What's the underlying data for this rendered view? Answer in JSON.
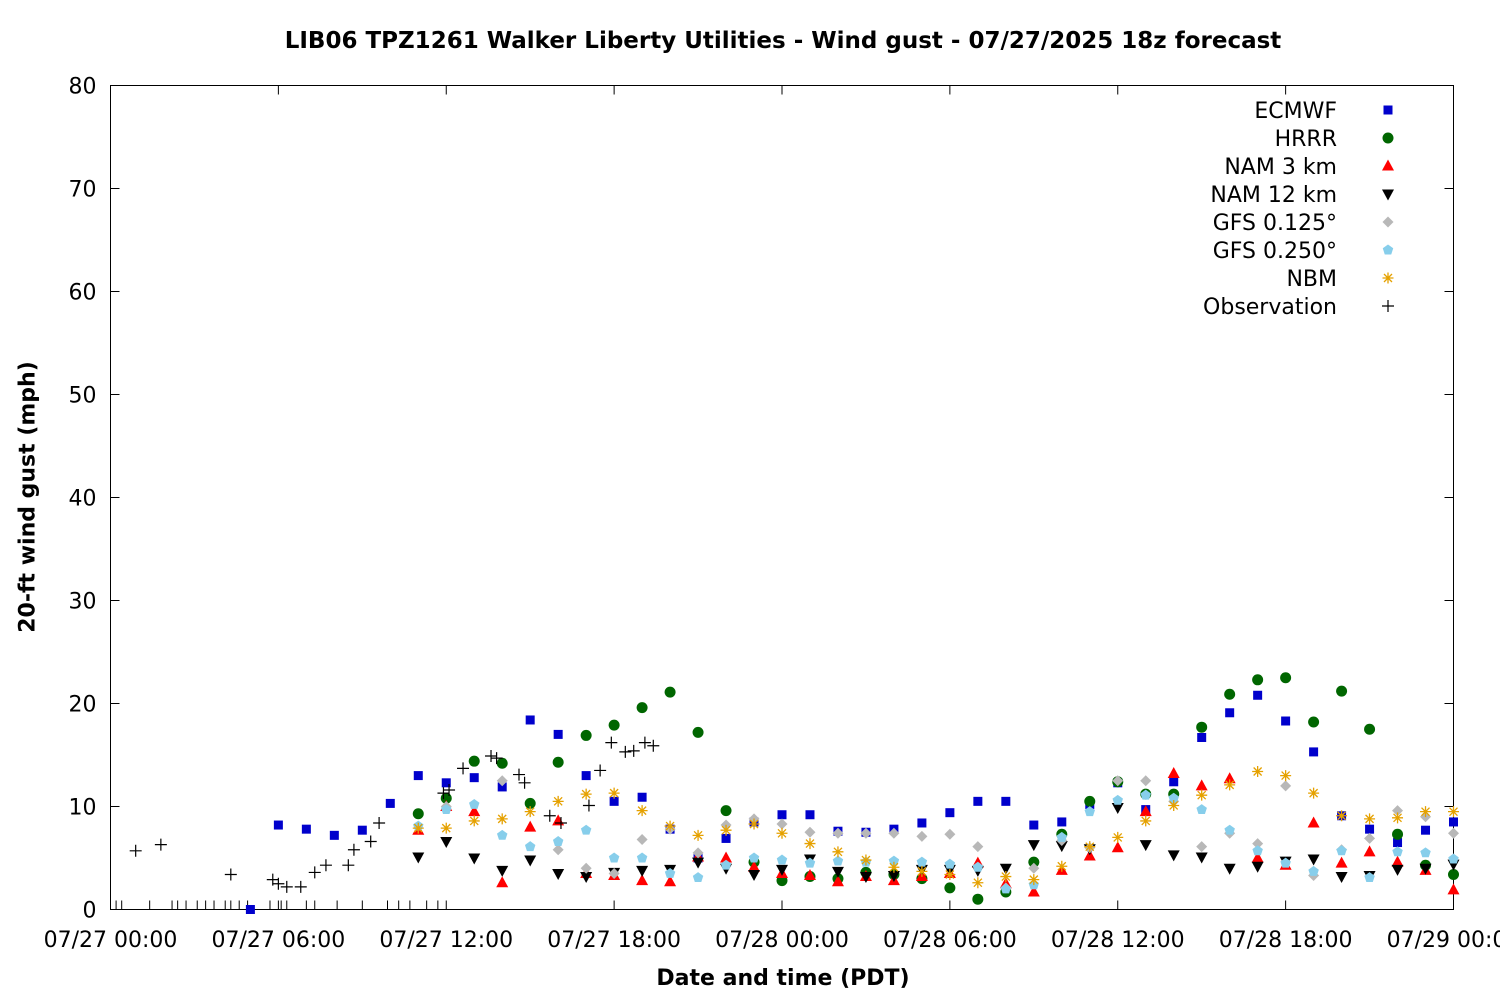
{
  "chart_data": {
    "type": "scatter",
    "title": "LIB06 TPZ1261 Walker Liberty Utilities - Wind gust - 07/27/2025 18z forecast",
    "xlabel": "Date and time (PDT)",
    "ylabel": "20-ft wind gust (mph)",
    "x_range_hours": [
      0,
      48
    ],
    "ylim": [
      0,
      80
    ],
    "y_ticks": [
      0,
      10,
      20,
      30,
      40,
      50,
      60,
      70,
      80
    ],
    "x_ticks": [
      {
        "hour": 0,
        "label": "07/27 00:00"
      },
      {
        "hour": 6,
        "label": "07/27 06:00"
      },
      {
        "hour": 12,
        "label": "07/27 12:00"
      },
      {
        "hour": 18,
        "label": "07/27 18:00"
      },
      {
        "hour": 24,
        "label": "07/28 00:00"
      },
      {
        "hour": 30,
        "label": "07/28 06:00"
      },
      {
        "hour": 36,
        "label": "07/28 12:00"
      },
      {
        "hour": 42,
        "label": "07/28 18:00"
      },
      {
        "hour": 48,
        "label": "07/29 00:00"
      }
    ],
    "x_unit": "hours since 07/27 00:00 PDT",
    "grid": false,
    "legend_position": "top-right",
    "observation_times_hours": [
      0.0,
      0.2,
      0.4,
      1.4,
      2.2,
      2.4,
      2.7,
      3.1,
      3.4,
      3.7,
      4.1,
      4.3,
      4.6,
      4.9,
      5.7,
      6.1,
      6.3,
      7.0,
      7.3,
      8.1,
      9.0,
      9.9,
      10.3,
      10.7,
      11.3,
      11.7
    ],
    "series": [
      {
        "name": "ECMWF",
        "marker": "square",
        "color": "#0000cc",
        "x": [
          5,
          6,
          7,
          8,
          9,
          10,
          11,
          12,
          13,
          14,
          15,
          16,
          17,
          18,
          19,
          20,
          21,
          22,
          23,
          24,
          25,
          26,
          27,
          28,
          29,
          30,
          31,
          32,
          33,
          34,
          35,
          36,
          37,
          38,
          39,
          40,
          41,
          42,
          43,
          44,
          45,
          46,
          47,
          48
        ],
        "y": [
          0,
          8.2,
          7.8,
          7.2,
          7.7,
          10.3,
          13,
          12.3,
          12.8,
          11.9,
          18.4,
          17,
          13,
          10.5,
          10.9,
          7.8,
          5,
          6.9,
          8.5,
          9.2,
          9.2,
          7.6,
          7.5,
          7.8,
          8.4,
          9.4,
          10.5,
          10.5,
          8.2,
          8.5,
          10.2,
          12.3,
          9.7,
          12.4,
          16.7,
          19.1,
          20.8,
          18.3,
          15.3,
          9.1,
          7.8,
          6.5,
          7.7,
          8.5
        ]
      },
      {
        "name": "HRRR",
        "marker": "circle",
        "color": "#006600",
        "x": [
          11,
          12,
          13,
          14,
          15,
          16,
          17,
          18,
          19,
          20,
          21,
          22,
          23,
          24,
          25,
          26,
          27,
          28,
          29,
          30,
          31,
          32,
          33,
          34,
          35,
          36,
          37,
          38,
          39,
          40,
          41,
          42,
          43,
          44,
          45,
          46,
          47,
          48
        ],
        "y": [
          9.3,
          10.8,
          14.4,
          14.2,
          10.3,
          14.3,
          16.9,
          17.9,
          19.6,
          21.1,
          17.2,
          9.6,
          4.6,
          2.8,
          3.2,
          3,
          3.6,
          3.4,
          3,
          2.1,
          1,
          1.7,
          4.6,
          7.3,
          10.5,
          12.4,
          11.2,
          11.2,
          17.7,
          20.9,
          22.3,
          22.5,
          18.2,
          21.2,
          17.5,
          7.3,
          4.3,
          3.4
        ]
      },
      {
        "name": "NAM 3 km",
        "marker": "triangle-up",
        "color": "#ff0000",
        "x": [
          11,
          12,
          13,
          14,
          15,
          16,
          17,
          18,
          19,
          20,
          21,
          22,
          23,
          24,
          25,
          26,
          27,
          28,
          29,
          30,
          31,
          32,
          33,
          34,
          35,
          36,
          37,
          38,
          39,
          40,
          41,
          42,
          43,
          44,
          45,
          46,
          47,
          48
        ],
        "y": [
          7.7,
          10,
          9.5,
          2.6,
          8,
          8.6,
          3.5,
          3.3,
          2.8,
          2.7,
          5.1,
          5,
          4.1,
          3.5,
          3.3,
          2.7,
          3.2,
          2.8,
          3.2,
          3.5,
          4.5,
          2.5,
          1.7,
          3.8,
          5.2,
          6,
          9.5,
          13.2,
          12,
          12.7,
          5,
          4.3,
          8.4,
          4.5,
          5.6,
          4.6,
          3.8,
          1.9
        ]
      },
      {
        "name": "NAM 12 km",
        "marker": "triangle-down",
        "color": "#000000",
        "x": [
          11,
          12,
          13,
          14,
          15,
          16,
          17,
          18,
          19,
          20,
          21,
          22,
          23,
          24,
          25,
          26,
          27,
          28,
          29,
          30,
          31,
          32,
          33,
          34,
          35,
          36,
          37,
          38,
          39,
          40,
          41,
          42,
          43,
          44,
          45,
          46,
          47,
          48
        ],
        "y": [
          5.1,
          6.6,
          5,
          3.8,
          4.8,
          3.5,
          3.2,
          3.6,
          3.8,
          3.9,
          4.6,
          4,
          3.4,
          3.9,
          4.9,
          3.7,
          3.2,
          3.3,
          3.9,
          3.9,
          3.8,
          4,
          6.3,
          6.2,
          5.9,
          9.9,
          6.3,
          5.3,
          5.1,
          4,
          4.2,
          4.7,
          4.9,
          3.2,
          3.3,
          3.9,
          4,
          4.4
        ]
      },
      {
        "name": "GFS 0.125°",
        "marker": "diamond",
        "color": "#b8b8b8",
        "x": [
          12,
          14,
          16,
          17,
          18,
          19,
          20,
          21,
          22,
          23,
          24,
          25,
          26,
          27,
          28,
          29,
          30,
          31,
          32,
          33,
          34,
          35,
          36,
          37,
          38,
          39,
          40,
          41,
          42,
          43,
          44,
          45,
          46,
          47,
          48
        ],
        "y": [
          10,
          12.5,
          5.8,
          4,
          3.5,
          6.8,
          7.8,
          5.5,
          8.2,
          8.8,
          8.3,
          7.5,
          7.4,
          7.4,
          7.4,
          7.1,
          7.3,
          6.1,
          2.1,
          4,
          6.7,
          6,
          12.5,
          12.5,
          10.5,
          6.1,
          7.4,
          6.4,
          12,
          3.3,
          5.8,
          6.9,
          9.6,
          9,
          7.4
        ]
      },
      {
        "name": "GFS 0.250°",
        "marker": "pentagon",
        "color": "#87ceeb",
        "x": [
          11,
          12,
          13,
          14,
          15,
          16,
          17,
          18,
          19,
          20,
          21,
          22,
          23,
          24,
          25,
          26,
          27,
          28,
          29,
          30,
          31,
          32,
          33,
          34,
          35,
          36,
          37,
          38,
          39,
          40,
          41,
          42,
          43,
          44,
          45,
          46,
          47,
          48
        ],
        "y": [
          8.1,
          9.7,
          10.2,
          7.2,
          6.1,
          6.6,
          7.7,
          5,
          5,
          3.5,
          3.1,
          4.3,
          5,
          4.8,
          4.5,
          4.7,
          4.6,
          4.7,
          4.6,
          4.4,
          4.1,
          2,
          2.4,
          7,
          9.5,
          10.6,
          11.1,
          10.8,
          9.7,
          7.7,
          5.7,
          4.5,
          3.7,
          5.7,
          3.1,
          5.6,
          5.5,
          4.9
        ]
      },
      {
        "name": "NBM",
        "marker": "asterisk",
        "color": "#e5a100",
        "x": [
          11,
          12,
          13,
          14,
          15,
          16,
          17,
          18,
          19,
          20,
          21,
          22,
          23,
          24,
          25,
          26,
          27,
          28,
          29,
          30,
          31,
          32,
          33,
          34,
          35,
          36,
          37,
          38,
          39,
          40,
          41,
          42,
          43,
          44,
          45,
          46,
          47,
          48
        ],
        "y": [
          7.9,
          7.9,
          8.6,
          8.8,
          9.5,
          10.5,
          11.2,
          11.3,
          9.6,
          8.1,
          7.2,
          7.7,
          8.3,
          7.4,
          6.4,
          5.6,
          4.8,
          4.1,
          3.7,
          3.4,
          2.6,
          3.2,
          2.9,
          4.2,
          6.1,
          7,
          8.6,
          10.1,
          11.1,
          12.1,
          13.4,
          13,
          11.3,
          9.1,
          8.8,
          8.9,
          9.5,
          9.5
        ]
      },
      {
        "name": "Observation",
        "marker": "plus",
        "color": "#000000",
        "x": [
          0.9,
          1.8,
          4.3,
          5.8,
          6,
          6.3,
          6.8,
          7.3,
          7.7,
          8.5,
          8.7,
          9.3,
          9.6,
          11.9,
          12.1,
          12.6,
          13.6,
          13.8,
          14.6,
          14.8,
          15.7,
          16.1,
          17.1,
          17.5,
          17.9,
          18.4,
          18.7,
          19.1,
          19.4
        ],
        "y": [
          5.7,
          6.3,
          3.4,
          2.9,
          2.5,
          2.2,
          2.2,
          3.6,
          4.3,
          4.3,
          5.8,
          6.6,
          8.4,
          11.3,
          11.6,
          13.7,
          14.9,
          14.7,
          13.1,
          12.3,
          9.1,
          8.4,
          10.1,
          13.5,
          16.2,
          15.3,
          15.4,
          16.2,
          15.9
        ]
      }
    ]
  }
}
